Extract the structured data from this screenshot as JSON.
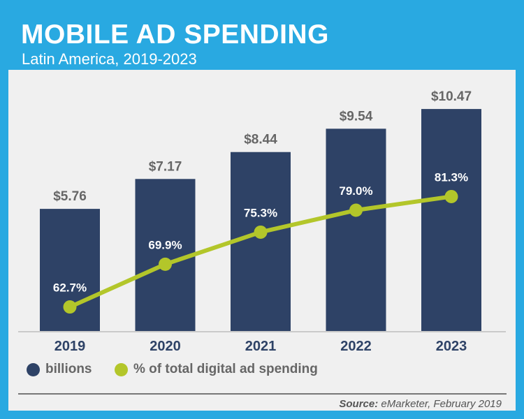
{
  "title": "MOBILE AD SPENDING",
  "subtitle": "Latin America, 2019-2023",
  "source_label": "Source:",
  "source_text": "eMarketer, February 2019",
  "colors": {
    "background": "#29a9e1",
    "panel": "#f0f0f0",
    "bar": "#2e4266",
    "line": "#b3c62a",
    "label_grey": "#666666"
  },
  "chart_data": {
    "type": "bar",
    "categories": [
      "2019",
      "2020",
      "2021",
      "2022",
      "2023"
    ],
    "series": [
      {
        "name": "billions",
        "type": "bar",
        "values": [
          5.76,
          7.17,
          8.44,
          9.54,
          10.47
        ],
        "labels": [
          "$5.76",
          "$7.17",
          "$8.44",
          "$9.54",
          "$10.47"
        ]
      },
      {
        "name": "% of total digital ad spending",
        "type": "line",
        "values": [
          62.7,
          69.9,
          75.3,
          79.0,
          81.3
        ],
        "labels": [
          "62.7%",
          "69.9%",
          "75.3%",
          "79.0%",
          "81.3%"
        ]
      }
    ],
    "bar_ylim": [
      0,
      11
    ],
    "line_ylim": [
      55,
      85
    ],
    "grid": false,
    "legend_position": "bottom-left"
  }
}
